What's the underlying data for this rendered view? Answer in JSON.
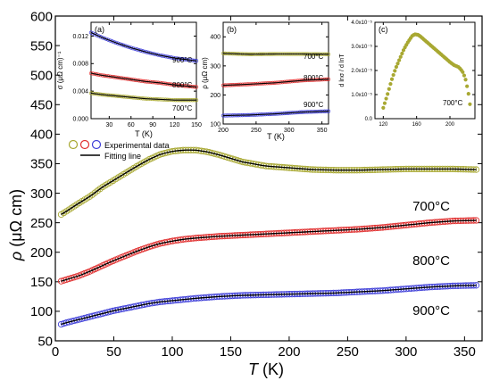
{
  "chart_data": [
    {
      "type": "scatter",
      "xlabel": "T (K)",
      "ylabel": "ρ (μΩ cm)",
      "xlim": [
        0,
        365
      ],
      "ylim": [
        50,
        600
      ],
      "xticks": [
        0,
        50,
        100,
        150,
        200,
        250,
        300,
        350
      ],
      "yticks": [
        50,
        100,
        150,
        200,
        250,
        300,
        350,
        400,
        450,
        500,
        550,
        600
      ],
      "legend": {
        "placement": "center-left",
        "entries": [
          "Experimental data",
          "Fitting line"
        ]
      },
      "series": [
        {
          "name": "700°C",
          "color": "#a8a832",
          "x": [
            5,
            10,
            20,
            30,
            40,
            50,
            60,
            70,
            80,
            90,
            100,
            110,
            120,
            130,
            140,
            150,
            160,
            180,
            200,
            220,
            240,
            260,
            280,
            300,
            320,
            340,
            360
          ],
          "y": [
            264,
            270,
            283,
            295,
            310,
            322,
            334,
            346,
            357,
            366,
            371,
            373,
            373,
            370,
            365,
            359,
            353,
            346,
            343,
            340,
            339,
            339,
            340,
            341,
            341,
            341,
            340
          ]
        },
        {
          "name": "800°C",
          "color": "#e03030",
          "x": [
            5,
            10,
            20,
            30,
            40,
            50,
            60,
            70,
            80,
            90,
            100,
            110,
            120,
            140,
            160,
            180,
            200,
            220,
            240,
            260,
            280,
            300,
            320,
            340,
            360
          ],
          "y": [
            151,
            154,
            160,
            168,
            177,
            186,
            194,
            202,
            209,
            215,
            219,
            222,
            224,
            227,
            229,
            231,
            233,
            235,
            237,
            239,
            242,
            246,
            250,
            253,
            254
          ]
        },
        {
          "name": "900°C",
          "color": "#4040d8",
          "x": [
            5,
            10,
            20,
            30,
            40,
            50,
            60,
            70,
            80,
            90,
            100,
            120,
            140,
            160,
            180,
            200,
            220,
            240,
            260,
            280,
            300,
            320,
            340,
            360
          ],
          "y": [
            78,
            81,
            86,
            91,
            96,
            101,
            105,
            109,
            113,
            116,
            118,
            122,
            125,
            127,
            128,
            129,
            130,
            131,
            133,
            135,
            138,
            141,
            143,
            144
          ]
        }
      ],
      "annotations": [
        "700°C",
        "800°C",
        "900°C"
      ]
    },
    {
      "type": "scatter",
      "panel_label": "(a)",
      "xlabel": "T (K)",
      "ylabel": "σ (μΩ cm)⁻¹",
      "xlim": [
        5,
        150
      ],
      "ylim": [
        0,
        0.014
      ],
      "xticks": [
        30,
        60,
        90,
        120,
        150
      ],
      "yticks": [
        0.0,
        0.004,
        0.008,
        0.012
      ],
      "yticklabels": [
        "0.000",
        "0.004",
        "0.008",
        "0.012"
      ],
      "series": [
        {
          "name": "900°C",
          "color": "#4040d8",
          "x": [
            5,
            20,
            40,
            60,
            80,
            100,
            120,
            150
          ],
          "y": [
            0.0125,
            0.0118,
            0.011,
            0.0103,
            0.0097,
            0.0092,
            0.0088,
            0.0084
          ]
        },
        {
          "name": "800°C",
          "color": "#e03030",
          "x": [
            5,
            20,
            40,
            60,
            80,
            100,
            120,
            150
          ],
          "y": [
            0.0066,
            0.0063,
            0.006,
            0.0057,
            0.0054,
            0.0052,
            0.0049,
            0.0046
          ]
        },
        {
          "name": "700°C",
          "color": "#a8a832",
          "x": [
            5,
            20,
            40,
            60,
            80,
            100,
            120,
            150
          ],
          "y": [
            0.0037,
            0.0035,
            0.0033,
            0.0031,
            0.0029,
            0.0028,
            0.0027,
            0.0027
          ]
        }
      ]
    },
    {
      "type": "scatter",
      "panel_label": "(b)",
      "xlabel": "T (K)",
      "ylabel": "ρ (μΩ cm)",
      "xlim": [
        200,
        360
      ],
      "ylim": [
        100,
        450
      ],
      "xticks": [
        200,
        250,
        300,
        350
      ],
      "yticks": [
        100,
        200,
        300,
        400
      ],
      "series": [
        {
          "name": "700°C",
          "color": "#a8a832",
          "x": [
            200,
            240,
            280,
            320,
            360
          ],
          "y": [
            343,
            340,
            341,
            341,
            340
          ]
        },
        {
          "name": "800°C",
          "color": "#e03030",
          "x": [
            200,
            240,
            280,
            320,
            360
          ],
          "y": [
            233,
            237,
            242,
            250,
            254
          ]
        },
        {
          "name": "900°C",
          "color": "#4040d8",
          "x": [
            200,
            240,
            280,
            320,
            360
          ],
          "y": [
            129,
            131,
            135,
            141,
            144
          ]
        }
      ]
    },
    {
      "type": "scatter",
      "panel_label": "(c)",
      "ylabel": "d lnσ / d lnT",
      "xlim": [
        110,
        230
      ],
      "ylim": [
        0,
        4e-05
      ],
      "xticks": [
        120,
        160,
        200
      ],
      "yticks": [
        0,
        1e-05,
        2e-05,
        3e-05,
        4e-05
      ],
      "yticklabels": [
        "0.0",
        "1.0x10⁻⁵",
        "2.0x10⁻⁵",
        "3.0x10⁻⁵",
        "4.0x10⁻⁵"
      ],
      "series": [
        {
          "name": "700°C",
          "color": "#a8a832",
          "x": [
            120,
            125,
            130,
            135,
            140,
            145,
            150,
            155,
            158,
            162,
            165,
            170,
            175,
            180,
            185,
            190,
            195,
            200,
            205,
            210,
            213,
            216,
            219,
            222,
            224
          ],
          "y": [
            4.5e-06,
            1e-05,
            1.6e-05,
            2.1e-05,
            2.5e-05,
            2.9e-05,
            3.2e-05,
            3.45e-05,
            3.5e-05,
            3.48e-05,
            3.4e-05,
            3.25e-05,
            3.1e-05,
            2.95e-05,
            2.8e-05,
            2.65e-05,
            2.5e-05,
            2.35e-05,
            2.22e-05,
            2.15e-05,
            2.05e-05,
            1.9e-05,
            1.6e-05,
            1.1e-05,
            6e-06
          ]
        }
      ]
    }
  ],
  "main": {
    "xlabel_sym": "T",
    "xlabel_unit": " (K)",
    "ylabel_sym": "ρ",
    "ylabel_unit": " (μΩ cm)",
    "legend_exp": "Experimental data",
    "legend_fit": "Fitting line",
    "label_700": "700°C",
    "label_800": "800°C",
    "label_900": "900°C"
  },
  "inset_a": {
    "tag": "(a)",
    "xlabel": "T (K)",
    "ylabel": "σ (μΩ cm)⁻¹",
    "label_900": "900°C",
    "label_800": "800°C",
    "label_700": "700°C"
  },
  "inset_b": {
    "tag": "(b)",
    "xlabel": "T (K)",
    "ylabel": "ρ (μΩ cm)",
    "label_700": "700°C",
    "label_800": "800°C",
    "label_900": "900°C"
  },
  "inset_c": {
    "tag": "(c)",
    "ylabel": "d lnσ / d lnT",
    "label_700": "700°C"
  }
}
